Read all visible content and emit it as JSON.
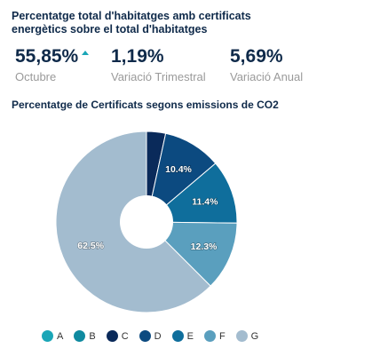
{
  "title": "Percentatge total d'habitatges amb certificats energètics sobre el total d'habitatges",
  "kpis": [
    {
      "value": "55,85%",
      "label": "Octubre",
      "trend": "up"
    },
    {
      "value": "1,19%",
      "label": "Variació Trimestral"
    },
    {
      "value": "5,69%",
      "label": "Variació Anual"
    }
  ],
  "colors": {
    "text": "#0f2a4a",
    "label_gray": "#9a9a9a",
    "trend_up": "#1aa6b7"
  },
  "chart_data": {
    "type": "pie",
    "title": "Percentatge de Certificats segons emissions de CO2",
    "donut": true,
    "categories": [
      "A",
      "B",
      "C",
      "D",
      "E",
      "F",
      "G"
    ],
    "values": [
      0.0,
      0.0,
      3.4,
      10.4,
      11.4,
      12.3,
      62.5
    ],
    "data_labels": [
      "",
      "",
      "",
      "10.4%",
      "11.4%",
      "12.3%",
      "62.5%"
    ],
    "colors": [
      "#1aa6b7",
      "#0f8aa0",
      "#0a2a5a",
      "#0c4a80",
      "#0f6e9c",
      "#5a9fbe",
      "#a3bccf"
    ],
    "legend_position": "bottom"
  }
}
